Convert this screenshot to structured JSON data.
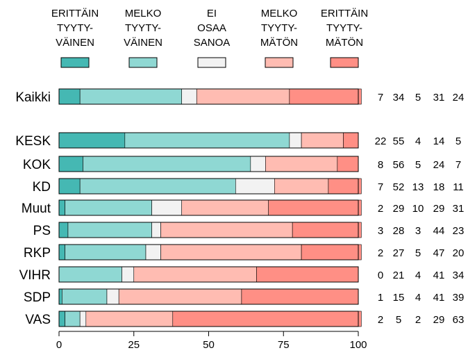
{
  "chart_data": {
    "type": "bar",
    "stacked": true,
    "orientation": "horizontal",
    "xlim": [
      0,
      100
    ],
    "xticks": [
      "0",
      "25",
      "50",
      "75",
      "100"
    ],
    "grid": false,
    "legend_position": "top",
    "series": [
      {
        "name": "ERITTÄIN TYYTY- VÄINEN",
        "lines": [
          "ERITTÄIN",
          "TYYTY-",
          "VÄINEN"
        ],
        "color": "#45b8b3"
      },
      {
        "name": "MELKO TYYTY- VÄINEN",
        "lines": [
          "MELKO",
          "TYYTY-",
          "VÄINEN"
        ],
        "color": "#8fd8d3"
      },
      {
        "name": "EI OSAA SANOA",
        "lines": [
          "EI",
          "OSAA",
          "SANOA"
        ],
        "color": "#f2f2f2"
      },
      {
        "name": "MELKO TYYTY- MÄTÖN",
        "lines": [
          "MELKO",
          "TYYTY-",
          "MÄTÖN"
        ],
        "color": "#ffbcb2"
      },
      {
        "name": "ERITTÄIN TYYTY- MÄTÖN",
        "lines": [
          "ERITTÄIN",
          "TYYTY-",
          "MÄTÖN"
        ],
        "color": "#ff8f85"
      }
    ],
    "rows": [
      {
        "label": "Kaikki",
        "values": [
          7,
          34,
          5,
          31,
          24
        ]
      },
      {
        "label": "KESK",
        "values": [
          22,
          55,
          4,
          14,
          5
        ]
      },
      {
        "label": "KOK",
        "values": [
          8,
          56,
          5,
          24,
          7
        ]
      },
      {
        "label": "KD",
        "values": [
          7,
          52,
          13,
          18,
          11
        ]
      },
      {
        "label": "Muut",
        "values": [
          2,
          29,
          10,
          29,
          31
        ]
      },
      {
        "label": "PS",
        "values": [
          3,
          28,
          3,
          44,
          23
        ]
      },
      {
        "label": "RKP",
        "values": [
          2,
          27,
          5,
          47,
          20
        ]
      },
      {
        "label": "VIHR",
        "values": [
          0,
          21,
          4,
          41,
          34
        ]
      },
      {
        "label": "SDP",
        "values": [
          1,
          15,
          4,
          41,
          39
        ]
      },
      {
        "label": "VAS",
        "values": [
          2,
          5,
          2,
          29,
          63
        ]
      }
    ]
  }
}
